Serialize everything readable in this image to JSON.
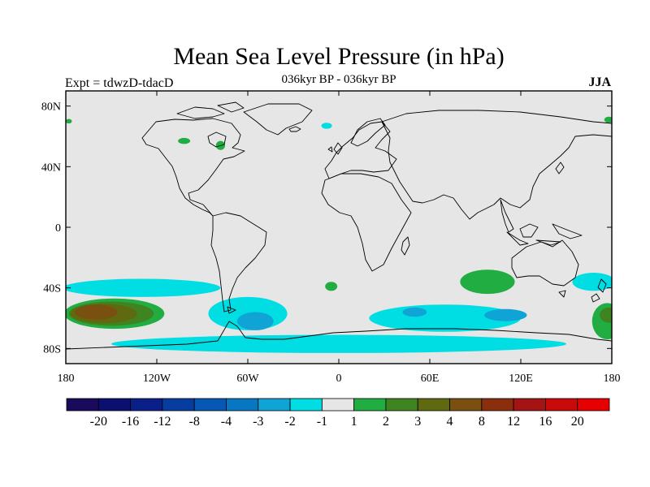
{
  "title": "Mean Sea Level Pressure (in hPa)",
  "subtitle": "036kyr BP - 036kyr BP",
  "left_label": "Expt = tdwzD-tdacD",
  "season": "JJA",
  "colors": {
    "ocean_background": "#e6e6e6",
    "coastline": "#000000"
  },
  "map": {
    "projection": "cylindrical-equidistant",
    "lon_ticks": [
      {
        "lon": -180,
        "label": "180"
      },
      {
        "lon": -120,
        "label": "120W"
      },
      {
        "lon": -60,
        "label": "60W"
      },
      {
        "lon": 0,
        "label": "0"
      },
      {
        "lon": 60,
        "label": "60E"
      },
      {
        "lon": 120,
        "label": "120E"
      },
      {
        "lon": 180,
        "label": "180"
      }
    ],
    "lat_ticks": [
      {
        "lat": 80,
        "label": "80N"
      },
      {
        "lat": 40,
        "label": "40N"
      },
      {
        "lat": 0,
        "label": "0"
      },
      {
        "lat": -40,
        "label": "40S"
      },
      {
        "lat": -80,
        "label": "80S"
      }
    ],
    "anomaly_regions": [
      {
        "name": "south-pacific-negative-band",
        "class": "-2 to -1",
        "lon": -130,
        "lat": -40,
        "rx": 52,
        "ry": 6
      },
      {
        "name": "south-pacific-positive-outer",
        "class": "1 to 2",
        "lon": -148,
        "lat": -57,
        "rx": 33,
        "ry": 10
      },
      {
        "name": "south-pacific-positive-2",
        "class": "2 to 3",
        "lon": -150,
        "lat": -57,
        "rx": 28,
        "ry": 8
      },
      {
        "name": "south-pacific-positive-3",
        "class": "3 to 4",
        "lon": -155,
        "lat": -57,
        "rx": 22,
        "ry": 6.5
      },
      {
        "name": "south-pacific-positive-core",
        "class": "4 to 8",
        "lon": -160,
        "lat": -56,
        "rx": 14,
        "ry": 5
      },
      {
        "name": "drake-passage-negative",
        "class": "-2 to -1",
        "lon": -60,
        "lat": -57,
        "rx": 26,
        "ry": 11
      },
      {
        "name": "drake-passage-negative-core",
        "class": "-3 to -2",
        "lon": -55,
        "lat": -62,
        "rx": 12,
        "ry": 6
      },
      {
        "name": "south-atlantic-positive",
        "class": "1 to 2",
        "lon": -5,
        "lat": -39,
        "rx": 4,
        "ry": 3
      },
      {
        "name": "southern-ocean-indian-negative",
        "class": "-2 to -1",
        "lon": 70,
        "lat": -60,
        "rx": 50,
        "ry": 9
      },
      {
        "name": "southern-ocean-indian-negative-core",
        "class": "-3 to -2",
        "lon": 110,
        "lat": -58,
        "rx": 14,
        "ry": 4
      },
      {
        "name": "southern-ocean-negative-core-west",
        "class": "-3 to -2",
        "lon": 50,
        "lat": -56,
        "rx": 8,
        "ry": 3
      },
      {
        "name": "south-indian-positive",
        "class": "1 to 2",
        "lon": 98,
        "lat": -36,
        "rx": 18,
        "ry": 8
      },
      {
        "name": "tasman-negative",
        "class": "-2 to -1",
        "lon": 168,
        "lat": -36,
        "rx": 14,
        "ry": 6
      },
      {
        "name": "new-zealand-positive",
        "class": "1 to 2",
        "lon": 177,
        "lat": -62,
        "rx": 10,
        "ry": 12
      },
      {
        "name": "new-zealand-positive-core",
        "class": "2 to 3",
        "lon": 178,
        "lat": -58,
        "rx": 6,
        "ry": 5
      },
      {
        "name": "antarctic-coast-negative",
        "class": "-2 to -1",
        "lon": 0,
        "lat": -77,
        "rx": 150,
        "ry": 6
      },
      {
        "name": "hudson-bay-positive",
        "class": "1 to 2",
        "lon": -78,
        "lat": 54,
        "rx": 3,
        "ry": 3
      },
      {
        "name": "canada-positive",
        "class": "1 to 2",
        "lon": -102,
        "lat": 57,
        "rx": 4,
        "ry": 2
      },
      {
        "name": "greenland-sea-negative",
        "class": "-2 to -1",
        "lon": -8,
        "lat": 67,
        "rx": 3.5,
        "ry": 2
      },
      {
        "name": "arctic-positive-east",
        "class": "1 to 2",
        "lon": 178,
        "lat": 71,
        "rx": 3,
        "ry": 2
      },
      {
        "name": "arctic-positive-west",
        "class": "1 to 2",
        "lon": -178,
        "lat": 70,
        "rx": 2,
        "ry": 1.5
      }
    ]
  },
  "colorbar": {
    "labels": [
      "-20",
      "-16",
      "-12",
      "-8",
      "-4",
      "-3",
      "-2",
      "-1",
      "1",
      "2",
      "3",
      "4",
      "8",
      "12",
      "16",
      "20"
    ],
    "colors": [
      "#1a0a5c",
      "#0a0f70",
      "#0a1f88",
      "#083da0",
      "#0658b4",
      "#0877c2",
      "#0fa3d6",
      "#00dde3",
      "#e6e6e6",
      "#21ad42",
      "#3f8420",
      "#5f6a10",
      "#7a5010",
      "#8a2e0e",
      "#a51414",
      "#c80a0a",
      "#e60000"
    ]
  }
}
